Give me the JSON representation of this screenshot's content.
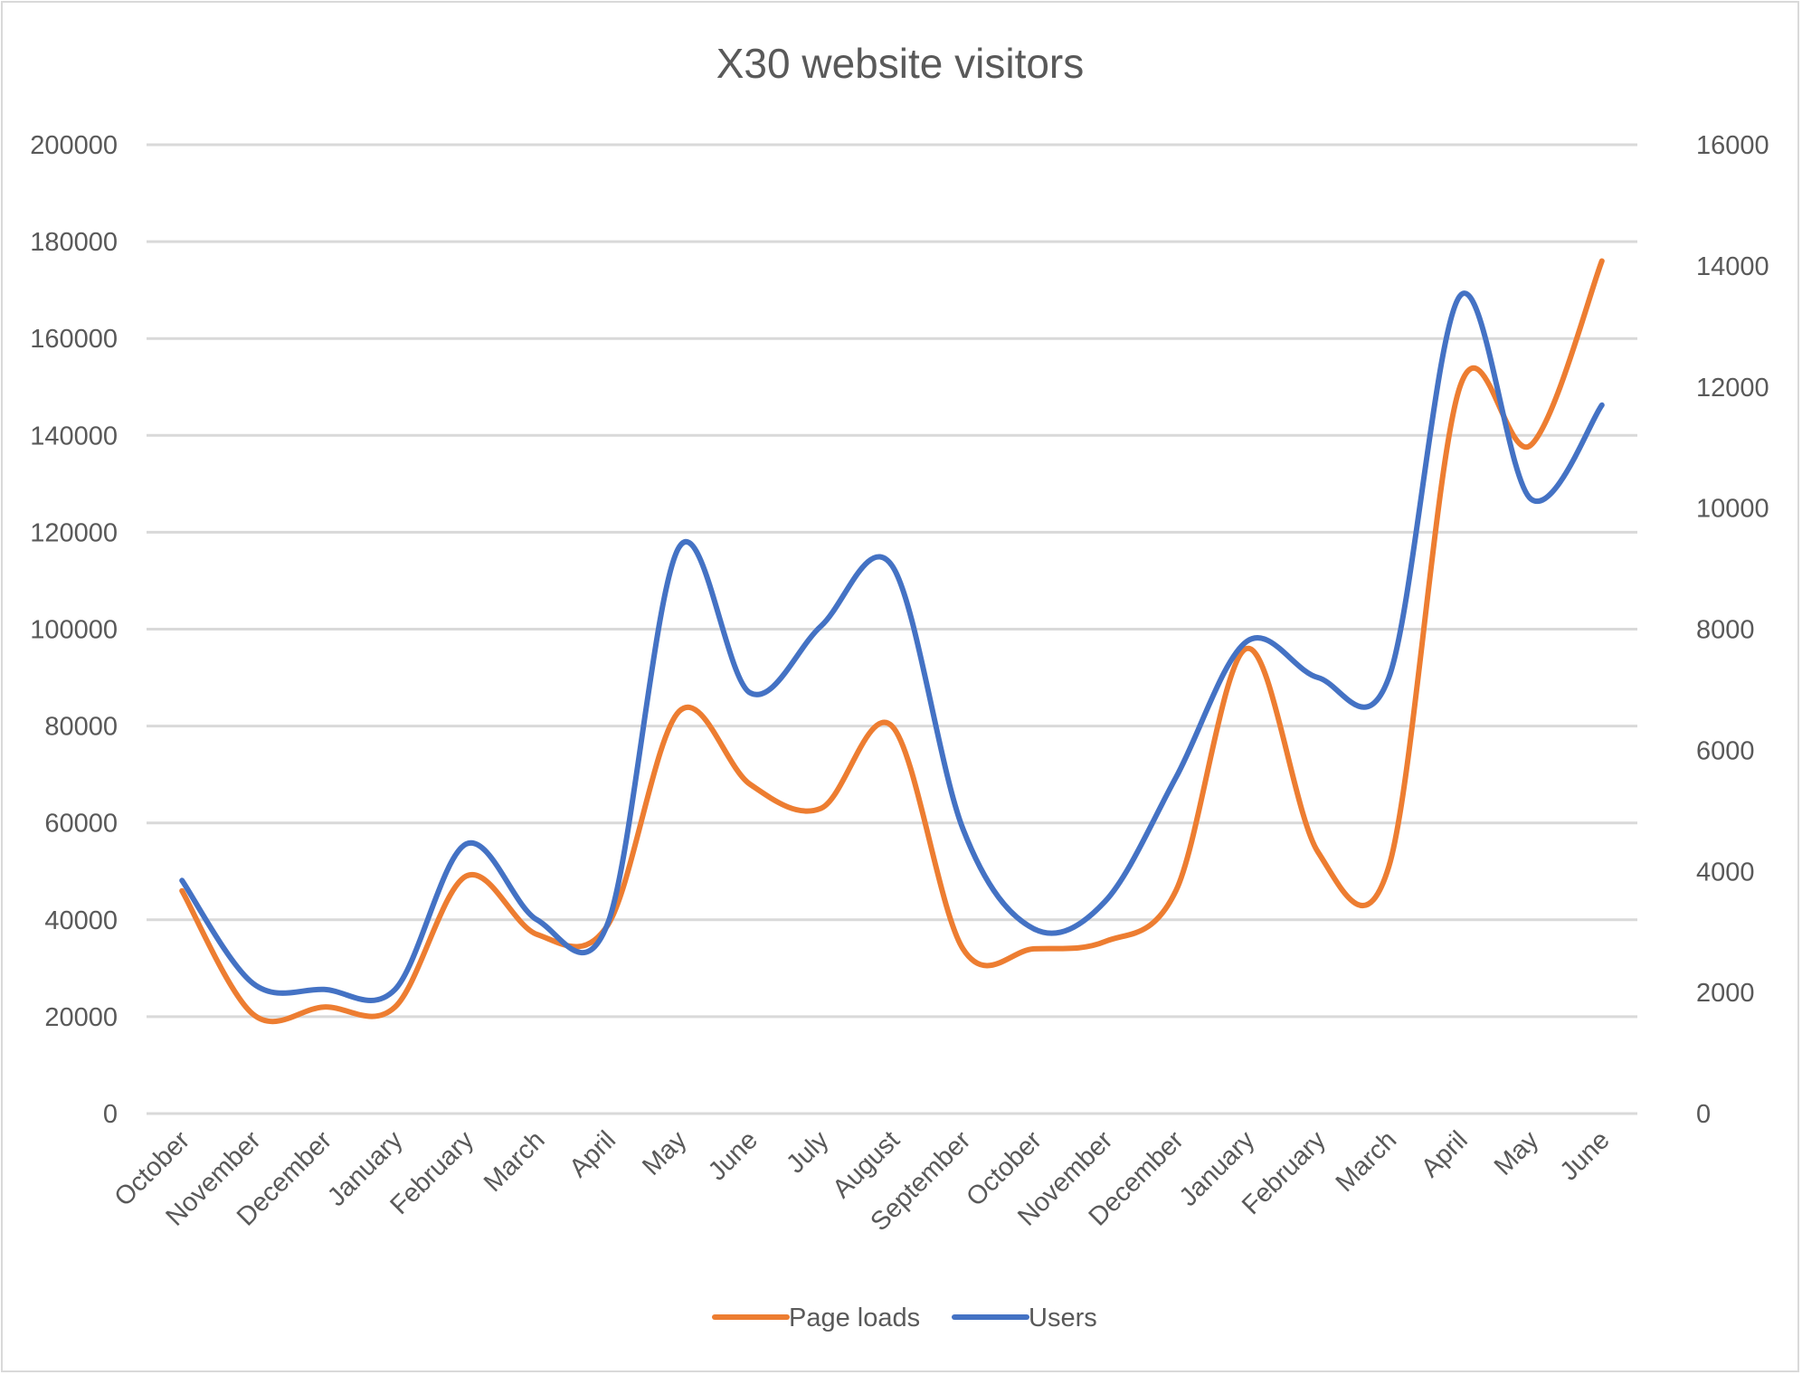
{
  "chart_data": {
    "type": "line",
    "title": "X30 website visitors",
    "categories": [
      "October",
      "November",
      "December",
      "January",
      "February",
      "March",
      "April",
      "May",
      "June",
      "July",
      "August",
      "September",
      "October",
      "November",
      "December",
      "January",
      "February",
      "March",
      "April",
      "May",
      "June"
    ],
    "y_left": {
      "ticks": [
        "200000",
        "180000",
        "160000",
        "140000",
        "120000",
        "100000",
        "80000",
        "60000",
        "40000",
        "20000",
        "0"
      ],
      "min": 0,
      "max": 200000
    },
    "y_right": {
      "ticks": [
        "16000",
        "14000",
        "12000",
        "10000",
        "8000",
        "6000",
        "4000",
        "2000",
        "0"
      ],
      "min": 0,
      "max": 16000
    },
    "grid": true,
    "legend_position": "bottom",
    "series": [
      {
        "name": "Page loads",
        "axis": "left",
        "color": "#ed7d31",
        "values": [
          46000,
          20500,
          22000,
          22000,
          49000,
          37000,
          39000,
          83000,
          68000,
          63000,
          80000,
          34000,
          34000,
          35500,
          46000,
          96000,
          54000,
          51000,
          150000,
          138000,
          176000
        ]
      },
      {
        "name": "Users",
        "axis": "right",
        "color": "#4472c4",
        "values": [
          3850,
          2150,
          2050,
          2050,
          4450,
          3200,
          3150,
          9350,
          6950,
          8050,
          9050,
          4700,
          3050,
          3500,
          5550,
          7800,
          7200,
          7200,
          13500,
          10150,
          11700
        ]
      }
    ]
  }
}
